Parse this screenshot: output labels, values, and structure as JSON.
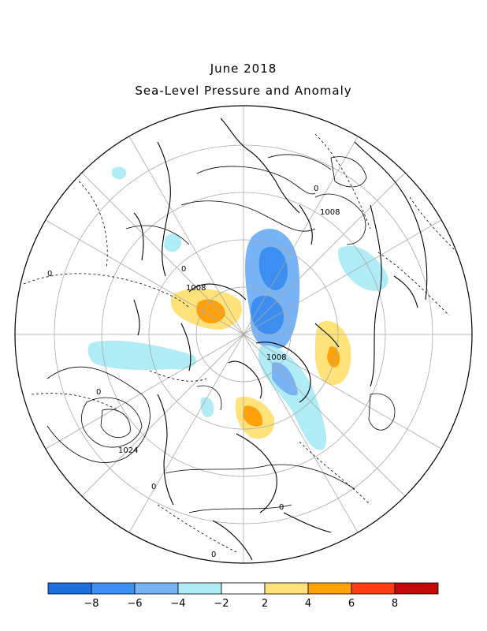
{
  "title": "June 2018",
  "subtitle": "Sea-Level Pressure and Anomaly",
  "contour_labels": [
    "0",
    "1008",
    "0",
    "1008",
    "0",
    "1008",
    "0",
    "1024",
    "0",
    "0",
    "0"
  ],
  "colorbar": {
    "ticks": [
      "−8",
      "−6",
      "−4",
      "−2",
      "2",
      "4",
      "6",
      "8"
    ],
    "colors": [
      "#1d6fe0",
      "#3c8ef0",
      "#78b4f5",
      "#b0ecf5",
      "#ffffff",
      "#ffe37a",
      "#ffa10a",
      "#ff3c12",
      "#c30a0a"
    ]
  }
}
